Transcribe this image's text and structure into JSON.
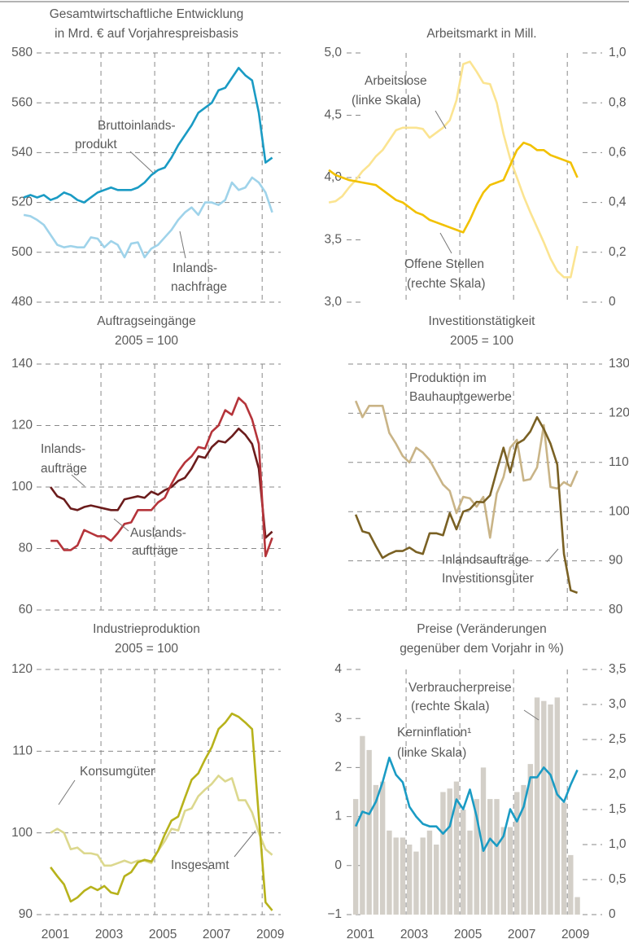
{
  "chart_data": [
    {
      "type": "line",
      "title": "Gesamtwirtschaftliche Entwicklung",
      "subtitle": "in Mrd. € auf Vorjahrespreisbasis",
      "x": [
        2000.125,
        2000.375,
        2000.625,
        2000.875,
        2001.125,
        2001.375,
        2001.625,
        2001.875,
        2002.125,
        2002.375,
        2002.625,
        2002.875,
        2003.125,
        2003.375,
        2003.625,
        2003.875,
        2004.125,
        2004.375,
        2004.625,
        2004.875,
        2005.125,
        2005.375,
        2005.625,
        2005.875,
        2006.125,
        2006.375,
        2006.625,
        2006.875,
        2007.125,
        2007.375,
        2007.625,
        2007.875,
        2008.125,
        2008.375,
        2008.625,
        2008.875,
        2009.125,
        2009.375
      ],
      "xlim": [
        2000,
        2009.6
      ],
      "xgrid": [
        2003,
        2005,
        2007,
        2009
      ],
      "ylim": [
        480,
        580
      ],
      "yticks": [
        480,
        500,
        520,
        540,
        560,
        580
      ],
      "grid": true,
      "series": [
        {
          "name": [
            "Bruttoinlands-",
            "produkt"
          ],
          "color": "#1a9bc4",
          "values": [
            522,
            523,
            522,
            523,
            521,
            522,
            524,
            523,
            521,
            520,
            522,
            524,
            525,
            526,
            525,
            525,
            525,
            526,
            528,
            531,
            533,
            534,
            538,
            543,
            547,
            551,
            556,
            558,
            560,
            565,
            566,
            570,
            574,
            571,
            569,
            556,
            536,
            538
          ]
        },
        {
          "name": [
            "Inlands-",
            "nachfrage"
          ],
          "color": "#9fd3ea",
          "values": [
            515,
            514.5,
            513,
            511,
            507,
            503,
            502,
            502.5,
            502,
            502,
            506,
            505.5,
            502,
            504.5,
            503,
            498,
            503.5,
            504,
            498,
            501.5,
            503,
            506,
            509,
            513,
            516,
            518,
            515,
            520,
            520,
            519,
            521,
            528,
            525,
            526,
            530,
            528,
            524,
            516
          ]
        }
      ]
    },
    {
      "type": "line",
      "title": "Arbeitsmarkt in Mill.",
      "x": [
        2000.125,
        2000.375,
        2000.625,
        2000.875,
        2001.125,
        2001.375,
        2001.625,
        2001.875,
        2002.125,
        2002.375,
        2002.625,
        2002.875,
        2003.125,
        2003.375,
        2003.625,
        2003.875,
        2004.125,
        2004.375,
        2004.625,
        2004.875,
        2005.125,
        2005.375,
        2005.625,
        2005.875,
        2006.125,
        2006.375,
        2006.625,
        2006.875,
        2007.125,
        2007.375,
        2007.625,
        2007.875,
        2008.125,
        2008.375,
        2008.625,
        2008.875,
        2009.125,
        2009.375
      ],
      "xlim": [
        2000,
        2009.6
      ],
      "xgrid": [
        2003,
        2005,
        2007,
        2009
      ],
      "ylim": [
        3,
        5
      ],
      "yticks": [
        {
          "value": 3,
          "label": "3,0"
        },
        {
          "value": 3.5,
          "label": "3,5"
        },
        {
          "value": 4,
          "label": "4,0"
        },
        {
          "value": 4.5,
          "label": "4,5"
        },
        {
          "value": 5,
          "label": "5,0"
        }
      ],
      "y2lim": [
        0,
        1
      ],
      "y2ticks": [
        0,
        {
          "value": 0.2,
          "label": "0,2"
        },
        {
          "value": 0.4,
          "label": "0,4"
        },
        {
          "value": 0.6,
          "label": "0,6"
        },
        {
          "value": 0.8,
          "label": "0,8"
        },
        {
          "value": 1,
          "label": "1,0"
        }
      ],
      "grid": false,
      "series": [
        {
          "name": [
            "Arbeitslose",
            "(linke Skala)"
          ],
          "color": "#fbe491",
          "values": [
            3.8,
            3.81,
            3.85,
            3.92,
            3.98,
            4.05,
            4.1,
            4.17,
            4.22,
            4.3,
            4.38,
            4.4,
            4.4,
            4.4,
            4.39,
            4.32,
            4.36,
            4.4,
            4.46,
            4.62,
            4.91,
            4.93,
            4.85,
            4.76,
            4.75,
            4.6,
            4.35,
            4.15,
            4.0,
            3.85,
            3.72,
            3.6,
            3.48,
            3.35,
            3.25,
            3.2,
            3.2,
            3.45
          ]
        },
        {
          "name": [
            "Offene Stellen",
            "(rechte Skala)"
          ],
          "color": "#f2c100",
          "axis": "y2",
          "values": [
            0.53,
            0.51,
            0.5,
            0.49,
            0.485,
            0.48,
            0.475,
            0.47,
            0.45,
            0.43,
            0.41,
            0.4,
            0.38,
            0.36,
            0.35,
            0.33,
            0.32,
            0.31,
            0.3,
            0.29,
            0.28,
            0.33,
            0.39,
            0.44,
            0.47,
            0.48,
            0.49,
            0.55,
            0.61,
            0.64,
            0.63,
            0.61,
            0.61,
            0.59,
            0.58,
            0.57,
            0.56,
            0.5
          ]
        }
      ]
    },
    {
      "type": "line",
      "title": "Auftragseingänge",
      "subtitle": "2005 = 100",
      "x": [
        2001.125,
        2001.375,
        2001.625,
        2001.875,
        2002.125,
        2002.375,
        2002.625,
        2002.875,
        2003.125,
        2003.375,
        2003.625,
        2003.875,
        2004.125,
        2004.375,
        2004.625,
        2004.875,
        2005.125,
        2005.375,
        2005.625,
        2005.875,
        2006.125,
        2006.375,
        2006.625,
        2006.875,
        2007.125,
        2007.375,
        2007.625,
        2007.875,
        2008.125,
        2008.375,
        2008.625,
        2008.875,
        2009.125,
        2009.375
      ],
      "xlim": [
        2000,
        2009.6
      ],
      "xgrid": [
        2003,
        2005,
        2007,
        2009
      ],
      "ylim": [
        60,
        140
      ],
      "yticks": [
        60,
        80,
        100,
        120,
        140
      ],
      "grid": true,
      "series": [
        {
          "name": [
            "Inlands-",
            "aufträge"
          ],
          "color": "#6b1c1c",
          "values": [
            100,
            97,
            96,
            93,
            92.5,
            93.5,
            94,
            93.5,
            93,
            92.5,
            92.5,
            96,
            96.5,
            97,
            96.5,
            98.5,
            97.5,
            99,
            100,
            102,
            103,
            106,
            110,
            109.5,
            113,
            115,
            114.5,
            116.5,
            119,
            117,
            114,
            106,
            83.5,
            85.5
          ]
        },
        {
          "name": [
            "Auslands-",
            "aufträge"
          ],
          "color": "#b5343a",
          "values": [
            82.5,
            82.5,
            79.5,
            79.5,
            81,
            86,
            85,
            84,
            84,
            82.5,
            85,
            88,
            88.5,
            92.5,
            92.5,
            92.5,
            95,
            96.5,
            101,
            105,
            108,
            110,
            113,
            112.5,
            118,
            120,
            125,
            123.5,
            129,
            127,
            122,
            114,
            77.5,
            83.5
          ]
        }
      ]
    },
    {
      "type": "line",
      "title": "Investitionstätigkeit",
      "subtitle": "2005 = 100",
      "x": [
        2001.125,
        2001.375,
        2001.625,
        2001.875,
        2002.125,
        2002.375,
        2002.625,
        2002.875,
        2003.125,
        2003.375,
        2003.625,
        2003.875,
        2004.125,
        2004.375,
        2004.625,
        2004.875,
        2005.125,
        2005.375,
        2005.625,
        2005.875,
        2006.125,
        2006.375,
        2006.625,
        2006.875,
        2007.125,
        2007.375,
        2007.625,
        2007.875,
        2008.125,
        2008.375,
        2008.625,
        2008.875,
        2009.125,
        2009.375
      ],
      "xlim": [
        2000,
        2009.6
      ],
      "xgrid": [
        2003,
        2005,
        2007,
        2009
      ],
      "ylim": [
        80,
        130
      ],
      "yticks": [
        80,
        90,
        100,
        110,
        120,
        130
      ],
      "yaxis": "right",
      "grid": true,
      "series": [
        {
          "name": [
            "Produktion im",
            "Bauhauptgewerbe"
          ],
          "color": "#c9b487",
          "values": [
            122.5,
            119.2,
            121.5,
            121.5,
            121.5,
            116,
            113.8,
            111.3,
            110,
            113,
            112,
            110.5,
            108,
            105.5,
            104.2,
            99.7,
            103,
            102.7,
            101,
            103,
            94.7,
            103.7,
            107,
            113,
            114.6,
            106.3,
            106.6,
            109,
            117.6,
            105,
            104.7,
            106,
            105.2,
            108.3
          ]
        },
        {
          "name": [
            "Inlandsaufträge",
            "Investitionsgüter"
          ],
          "color": "#7a6124",
          "values": [
            99.4,
            96,
            95.6,
            93,
            90.6,
            91.4,
            92,
            92,
            92.7,
            91.8,
            91.4,
            95.6,
            95.6,
            95.2,
            99.7,
            96.4,
            100,
            100.5,
            102,
            101.9,
            103.3,
            108.3,
            113,
            108,
            113.8,
            114.6,
            116.3,
            119.2,
            116.8,
            113.8,
            109.6,
            91.4,
            84,
            83.5
          ]
        }
      ]
    },
    {
      "type": "line",
      "title": "Industrieproduktion",
      "subtitle": "2005 = 100",
      "x": [
        2001.125,
        2001.375,
        2001.625,
        2001.875,
        2002.125,
        2002.375,
        2002.625,
        2002.875,
        2003.125,
        2003.375,
        2003.625,
        2003.875,
        2004.125,
        2004.375,
        2004.625,
        2004.875,
        2005.125,
        2005.375,
        2005.625,
        2005.875,
        2006.125,
        2006.375,
        2006.625,
        2006.875,
        2007.125,
        2007.375,
        2007.625,
        2007.875,
        2008.125,
        2008.375,
        2008.625,
        2008.875,
        2009.125,
        2009.375
      ],
      "xlim": [
        2000,
        2009.6
      ],
      "xgrid": [
        2003,
        2005,
        2007,
        2009
      ],
      "xticks": [
        2001,
        2003,
        2005,
        2007,
        2009
      ],
      "ylim": [
        90,
        120
      ],
      "yticks": [
        90,
        100,
        110,
        120
      ],
      "grid": true,
      "series": [
        {
          "name": [
            "Konsumgüter"
          ],
          "color": "#dcd88e",
          "values": [
            100,
            100.5,
            100,
            98,
            98.2,
            97.5,
            97.5,
            97.3,
            96,
            96,
            96.3,
            96.6,
            96.3,
            96.6,
            96.6,
            96.3,
            97.8,
            99,
            100.5,
            100.3,
            102.7,
            103,
            104.5,
            105.3,
            106,
            107,
            106.3,
            106.7,
            104,
            104,
            102.5,
            100,
            98,
            97.3
          ]
        },
        {
          "name": [
            "Insgesamt"
          ],
          "color": "#b7b21b",
          "values": [
            95.8,
            94.7,
            93.7,
            91.6,
            92.1,
            92.9,
            93.4,
            93.0,
            93.5,
            92.7,
            92.5,
            94.7,
            95.2,
            96.4,
            96.7,
            96.5,
            97.8,
            99.8,
            101.5,
            102.0,
            104.3,
            106.5,
            107.3,
            109.0,
            110.5,
            112.7,
            113.5,
            114.6,
            114.2,
            113.5,
            112.7,
            102.0,
            91.5,
            90.5
          ]
        }
      ]
    },
    {
      "type": "line",
      "title": "Preise (Veränderungen",
      "subtitle": "gegenüber dem Vorjahr in %)",
      "x": [
        2001.125,
        2001.375,
        2001.625,
        2001.875,
        2002.125,
        2002.375,
        2002.625,
        2002.875,
        2003.125,
        2003.375,
        2003.625,
        2003.875,
        2004.125,
        2004.375,
        2004.625,
        2004.875,
        2005.125,
        2005.375,
        2005.625,
        2005.875,
        2006.125,
        2006.375,
        2006.625,
        2006.875,
        2007.125,
        2007.375,
        2007.625,
        2007.875,
        2008.125,
        2008.375,
        2008.625,
        2008.875,
        2009.125,
        2009.375
      ],
      "xlim": [
        2000,
        2009.6
      ],
      "xgrid": [
        2003,
        2005,
        2007,
        2009
      ],
      "xticks": [
        2001,
        2003,
        2005,
        2007,
        2009
      ],
      "ylim": [
        -1,
        4
      ],
      "yticks": [
        {
          "value": -1,
          "label": "−1"
        },
        0,
        1,
        2,
        3,
        4
      ],
      "y2lim": [
        0,
        3.5
      ],
      "y2ticks": [
        0,
        {
          "value": 0.5,
          "label": "0,5"
        },
        {
          "value": 1,
          "label": "1,0"
        },
        {
          "value": 1.5,
          "label": "1,5"
        },
        {
          "value": 2,
          "label": "2,0"
        },
        {
          "value": 2.5,
          "label": "2,5"
        },
        {
          "value": 3,
          "label": "3,0"
        },
        {
          "value": 3.5,
          "label": "3,5"
        }
      ],
      "grid": false,
      "series": [
        {
          "name": [
            "Verbraucherpreise",
            "(rechte Skala)"
          ],
          "type": "bar",
          "color": "#d3cfc8",
          "axis": "y2",
          "values": [
            1.65,
            2.55,
            2.35,
            1.85,
            1.9,
            1.2,
            1.1,
            1.1,
            1.0,
            0.9,
            1.1,
            1.2,
            1.0,
            1.75,
            1.8,
            1.9,
            1.5,
            1.2,
            1.65,
            2.1,
            1.65,
            1.65,
            1.25,
            1.25,
            1.75,
            1.85,
            2.15,
            3.1,
            3.05,
            3.0,
            3.1,
            1.6,
            0.85,
            0.25
          ]
        },
        {
          "name": [
            "Kerninflation¹",
            "(linke Skala)"
          ],
          "color": "#1a9bc4",
          "values": [
            0.8,
            1.1,
            1.05,
            1.3,
            1.7,
            2.2,
            1.85,
            1.7,
            1.2,
            1.0,
            0.85,
            0.8,
            0.8,
            0.65,
            0.8,
            1.35,
            1.15,
            1.55,
            1.0,
            0.3,
            0.55,
            0.4,
            0.6,
            1.15,
            0.9,
            1.2,
            1.8,
            1.8,
            2.0,
            1.85,
            1.45,
            1.3,
            1.65,
            1.95
          ]
        }
      ]
    }
  ]
}
